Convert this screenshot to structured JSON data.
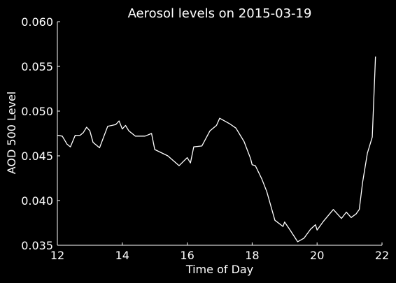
{
  "colors": {
    "background": "#000000",
    "foreground": "#ffffff",
    "line": "#ffffff"
  },
  "chart_data": {
    "type": "line",
    "title": "Aerosol levels on 2015-03-19",
    "xlabel": "Time of Day",
    "ylabel": "AOD 500 Level",
    "xlim": [
      12,
      22
    ],
    "ylim": [
      0.035,
      0.06
    ],
    "xticks": [
      12,
      14,
      16,
      18,
      20,
      22
    ],
    "xtick_labels": [
      "12",
      "14",
      "16",
      "18",
      "20",
      "22"
    ],
    "yticks": [
      0.035,
      0.04,
      0.045,
      0.05,
      0.055,
      0.06
    ],
    "ytick_labels": [
      "0.035",
      "0.040",
      "0.045",
      "0.050",
      "0.055",
      "0.060"
    ],
    "grid": false,
    "series": [
      {
        "points": [
          [
            12.0,
            0.0473
          ],
          [
            12.15,
            0.0472
          ],
          [
            12.3,
            0.0463
          ],
          [
            12.4,
            0.046
          ],
          [
            12.55,
            0.0473
          ],
          [
            12.7,
            0.0473
          ],
          [
            12.8,
            0.0476
          ],
          [
            12.9,
            0.0482
          ],
          [
            13.0,
            0.0478
          ],
          [
            13.1,
            0.0465
          ],
          [
            13.3,
            0.0459
          ],
          [
            13.55,
            0.0483
          ],
          [
            13.8,
            0.0485
          ],
          [
            13.9,
            0.0489
          ],
          [
            14.0,
            0.048
          ],
          [
            14.1,
            0.0484
          ],
          [
            14.2,
            0.0478
          ],
          [
            14.4,
            0.0472
          ],
          [
            14.7,
            0.0472
          ],
          [
            14.9,
            0.0475
          ],
          [
            15.0,
            0.0457
          ],
          [
            15.4,
            0.045
          ],
          [
            15.75,
            0.0439
          ],
          [
            16.0,
            0.0448
          ],
          [
            16.1,
            0.0442
          ],
          [
            16.2,
            0.046
          ],
          [
            16.45,
            0.0461
          ],
          [
            16.7,
            0.0478
          ],
          [
            16.9,
            0.0484
          ],
          [
            17.0,
            0.0492
          ],
          [
            17.3,
            0.0486
          ],
          [
            17.5,
            0.0481
          ],
          [
            17.75,
            0.0466
          ],
          [
            17.95,
            0.0447
          ],
          [
            18.0,
            0.044
          ],
          [
            18.1,
            0.0439
          ],
          [
            18.3,
            0.0424
          ],
          [
            18.45,
            0.041
          ],
          [
            18.7,
            0.0378
          ],
          [
            18.95,
            0.0371
          ],
          [
            19.0,
            0.0376
          ],
          [
            19.15,
            0.0368
          ],
          [
            19.4,
            0.0354
          ],
          [
            19.6,
            0.0358
          ],
          [
            19.8,
            0.0368
          ],
          [
            19.95,
            0.0373
          ],
          [
            20.0,
            0.0367
          ],
          [
            20.2,
            0.0377
          ],
          [
            20.5,
            0.039
          ],
          [
            20.75,
            0.038
          ],
          [
            20.9,
            0.0387
          ],
          [
            21.05,
            0.0381
          ],
          [
            21.2,
            0.0385
          ],
          [
            21.3,
            0.039
          ],
          [
            21.4,
            0.042
          ],
          [
            21.55,
            0.0453
          ],
          [
            21.7,
            0.0471
          ],
          [
            21.8,
            0.0561
          ]
        ]
      }
    ]
  }
}
